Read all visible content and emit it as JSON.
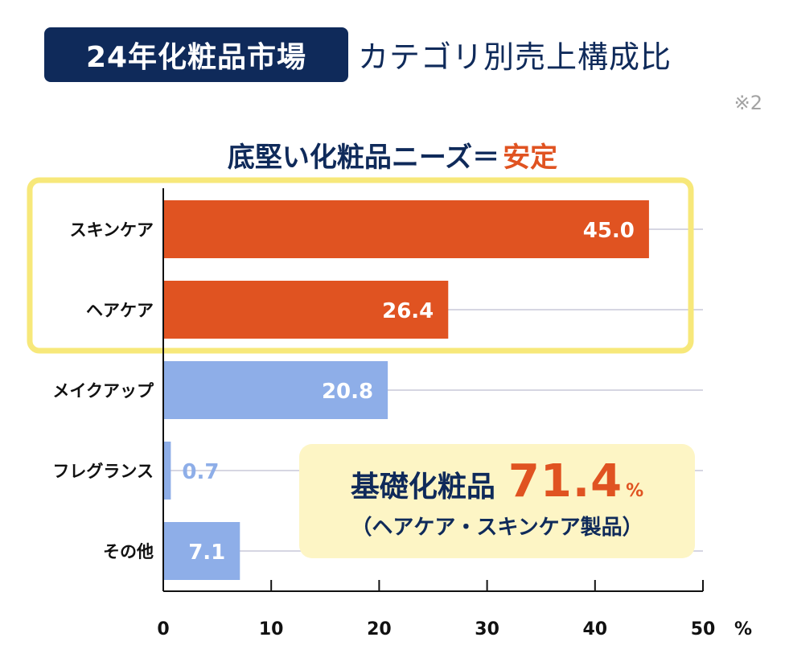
{
  "header": {
    "badge": "24年化粧品市場",
    "title": "カテゴリ別売上構成比",
    "note": "※2"
  },
  "headline": {
    "text": "底堅い化粧品ニーズ＝",
    "highlight": "安定"
  },
  "summary": {
    "label": "基礎化粧品",
    "value": "71.4",
    "unit": "%",
    "sub": "（ヘアケア・スキンケア製品）"
  },
  "colors": {
    "navy": "#0f2a5a",
    "accent_orange": "#e05321",
    "light_blue": "#8eaee8",
    "highlight_box": "#f7e87a",
    "summary_bg": "#fdf5c5"
  },
  "chart_data": {
    "type": "bar",
    "orientation": "horizontal",
    "categories": [
      "スキンケア",
      "ヘアケア",
      "メイクアップ",
      "フレグランス",
      "その他"
    ],
    "values": [
      45.0,
      26.4,
      20.8,
      0.7,
      7.1
    ],
    "value_labels": [
      "45.0",
      "26.4",
      "20.8",
      "0.7",
      "7.1"
    ],
    "bar_colors": [
      "#e05321",
      "#e05321",
      "#8eaee8",
      "#8eaee8",
      "#8eaee8"
    ],
    "highlighted_categories": [
      "スキンケア",
      "ヘアケア"
    ],
    "xlim": [
      0,
      50
    ],
    "xticks": [
      0,
      10,
      20,
      30,
      40,
      50
    ],
    "xunit": "%",
    "grid": true
  }
}
